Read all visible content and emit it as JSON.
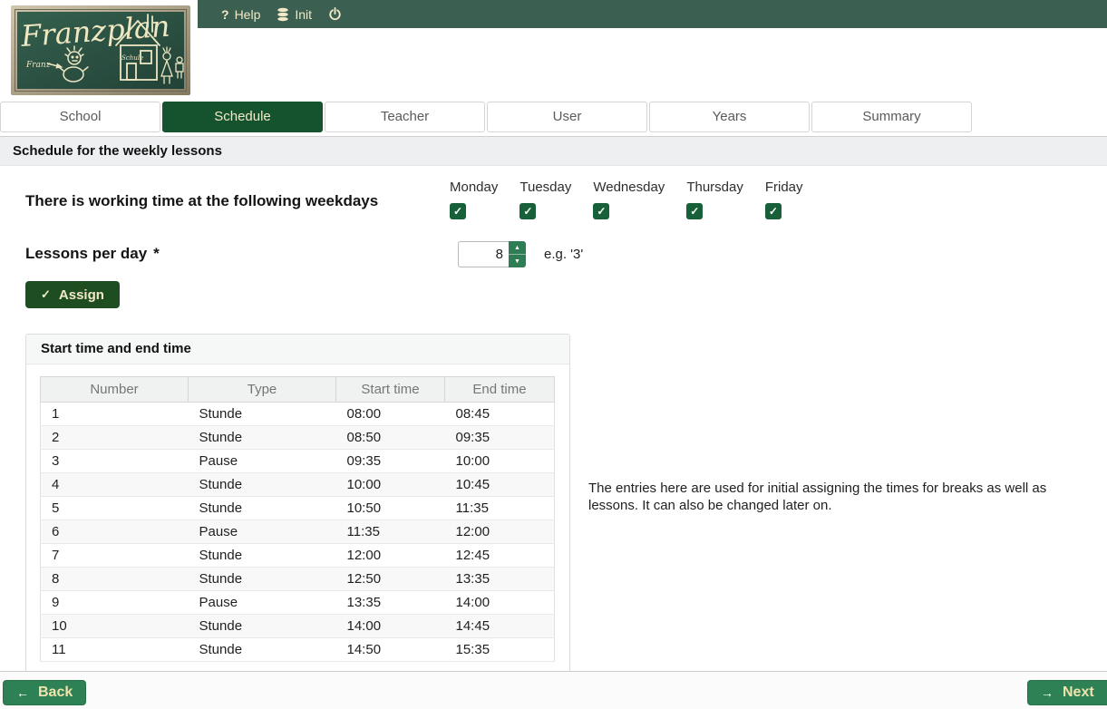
{
  "header": {
    "logo": {
      "title": "Franzplan",
      "franz_label": "Franz",
      "schule_label": "Schule"
    },
    "menu": {
      "help": "Help",
      "init": "Init"
    }
  },
  "tabs": [
    {
      "label": "School",
      "active": false
    },
    {
      "label": "Schedule",
      "active": true
    },
    {
      "label": "Teacher",
      "active": false
    },
    {
      "label": "User",
      "active": false
    },
    {
      "label": "Years",
      "active": false
    },
    {
      "label": "Summary",
      "active": false
    }
  ],
  "section_title": "Schedule for the weekly lessons",
  "weekdays_section": {
    "label": "There is working time at the following weekdays",
    "days": [
      {
        "name": "Monday",
        "checked": true
      },
      {
        "name": "Tuesday",
        "checked": true
      },
      {
        "name": "Wednesday",
        "checked": true
      },
      {
        "name": "Thursday",
        "checked": true
      },
      {
        "name": "Friday",
        "checked": true
      }
    ]
  },
  "lessons_per_day": {
    "label": "Lessons per day",
    "required_mark": "*",
    "value": "8",
    "hint": "e.g. '3'"
  },
  "assign_button_label": "Assign",
  "times_panel": {
    "title": "Start time and end time",
    "columns": [
      "Number",
      "Type",
      "Start time",
      "End time"
    ],
    "rows": [
      {
        "number": "1",
        "type": "Stunde",
        "start": "08:00",
        "end": "08:45"
      },
      {
        "number": "2",
        "type": "Stunde",
        "start": "08:50",
        "end": "09:35"
      },
      {
        "number": "3",
        "type": "Pause",
        "start": "09:35",
        "end": "10:00"
      },
      {
        "number": "4",
        "type": "Stunde",
        "start": "10:00",
        "end": "10:45"
      },
      {
        "number": "5",
        "type": "Stunde",
        "start": "10:50",
        "end": "11:35"
      },
      {
        "number": "6",
        "type": "Pause",
        "start": "11:35",
        "end": "12:00"
      },
      {
        "number": "7",
        "type": "Stunde",
        "start": "12:00",
        "end": "12:45"
      },
      {
        "number": "8",
        "type": "Stunde",
        "start": "12:50",
        "end": "13:35"
      },
      {
        "number": "9",
        "type": "Pause",
        "start": "13:35",
        "end": "14:00"
      },
      {
        "number": "10",
        "type": "Stunde",
        "start": "14:00",
        "end": "14:45"
      },
      {
        "number": "11",
        "type": "Stunde",
        "start": "14:50",
        "end": "15:35"
      }
    ]
  },
  "info_text": "The entries here are used for initial assigning the times for breaks as well as lessons. It can also be changed later on.",
  "footer": {
    "back": "Back",
    "next": "Next"
  },
  "colors": {
    "topbar_green": "#3B5F50",
    "active_tab_green": "#14532E",
    "checkbox_green": "#17603A",
    "assign_green": "#1F4D22",
    "nav_button_green": "#2E8155",
    "spinner_green": "#2E7D54",
    "cream_text": "#F2E9C7"
  }
}
